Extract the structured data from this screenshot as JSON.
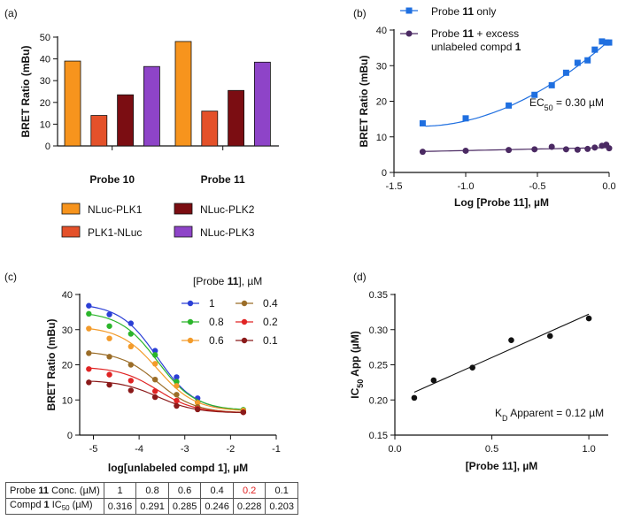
{
  "chart_data": [
    {
      "panel": "(a)",
      "type": "bar",
      "categories": [
        "Probe 10",
        "Probe 11"
      ],
      "series": [
        {
          "name": "NLuc-PLK1",
          "color": "#f7941d",
          "values": [
            39,
            48
          ]
        },
        {
          "name": "PLK1-NLuc",
          "color": "#e4512a",
          "values": [
            14,
            16
          ]
        },
        {
          "name": "NLuc-PLK2",
          "color": "#7b0d12",
          "values": [
            23.5,
            25.5
          ]
        },
        {
          "name": "NLuc-PLK3",
          "color": "#8e44c8",
          "values": [
            36.5,
            38.5
          ]
        }
      ],
      "ylabel": "BRET Ratio (mBu)",
      "ylim": [
        0,
        50
      ],
      "yticks": [
        "0",
        "10",
        "20",
        "30",
        "40",
        "50"
      ]
    },
    {
      "panel": "(b)",
      "type": "scatter",
      "xlabel": "Log [Probe 11], µM",
      "ylabel": "BRET Ratio (mBu)",
      "xlim": [
        -1.5,
        0
      ],
      "ylim": [
        0,
        40
      ],
      "xticks": [
        "-1.5",
        "-1.0",
        "-0.5",
        "0.0"
      ],
      "yticks": [
        "0",
        "10",
        "20",
        "30",
        "40"
      ],
      "annotation": {
        "prefix": "EC",
        "sub": "50",
        "suffix": " = 0.30 µM"
      },
      "series": [
        {
          "name_pre": "Probe ",
          "name_bold": "11",
          "name_post": " only",
          "color": "#1f6fe0",
          "marker": "square",
          "x": [
            -1.3,
            -1.0,
            -0.7,
            -0.52,
            -0.4,
            -0.3,
            -0.22,
            -0.15,
            -0.1,
            -0.05,
            -0.02,
            0.0
          ],
          "y": [
            13.8,
            15.2,
            18.8,
            21.8,
            24.5,
            28.0,
            30.8,
            31.5,
            34.5,
            36.8,
            36.5,
            36.5
          ]
        },
        {
          "name_line1_pre": "Probe ",
          "name_line1_bold": "11",
          "name_line1_post": " + excess",
          "name_line2_pre": "unlabeled compd ",
          "name_line2_bold": "1",
          "color": "#4b2a63",
          "marker": "circle",
          "x": [
            -1.3,
            -1.0,
            -0.7,
            -0.52,
            -0.4,
            -0.3,
            -0.22,
            -0.15,
            -0.1,
            -0.05,
            -0.02,
            0.0
          ],
          "y": [
            5.8,
            6.1,
            6.3,
            6.5,
            7.2,
            6.5,
            6.4,
            6.6,
            7.0,
            7.5,
            7.8,
            6.8
          ]
        }
      ]
    },
    {
      "panel": "(c)",
      "type": "line",
      "xlabel": "log[unlabeled compd 1], µM",
      "ylabel": "BRET Ratio (mBu)",
      "xlim": [
        -5.3,
        -1
      ],
      "ylim": [
        0,
        40
      ],
      "xticks": [
        "-5",
        "-4",
        "-3",
        "-2",
        "-1"
      ],
      "yticks": [
        "0",
        "10",
        "20",
        "30",
        "40"
      ],
      "legend_title_pre": "[Probe ",
      "legend_title_bold": "11",
      "legend_title_post": "], µM",
      "x": [
        -5.1,
        -4.65,
        -4.18,
        -3.65,
        -3.18,
        -2.72,
        -1.72
      ],
      "series": [
        {
          "name": "1",
          "color": "#2b3fd6",
          "y": [
            36.8,
            34.3,
            31.8,
            24.0,
            16.5,
            10.5,
            7.0
          ]
        },
        {
          "name": "0.8",
          "color": "#2bb52b",
          "y": [
            34.5,
            31.0,
            28.8,
            22.8,
            15.2,
            9.3,
            7.2
          ]
        },
        {
          "name": "0.6",
          "color": "#f39b2a",
          "y": [
            30.3,
            27.5,
            25.2,
            20.3,
            14.0,
            9.2,
            7.0
          ]
        },
        {
          "name": "0.4",
          "color": "#9b6d28",
          "y": [
            23.3,
            22.3,
            20.0,
            15.8,
            11.5,
            8.0,
            6.5
          ]
        },
        {
          "name": "0.2",
          "color": "#e02424",
          "y": [
            18.8,
            17.2,
            15.5,
            12.5,
            9.8,
            7.5,
            6.5
          ]
        },
        {
          "name": "0.1",
          "color": "#8b1a1a",
          "y": [
            15.0,
            14.3,
            12.7,
            10.8,
            8.3,
            7.3,
            6.5
          ]
        }
      ]
    },
    {
      "panel": "(d)",
      "type": "scatter",
      "xlabel_pre": "[Probe ",
      "xlabel_bold": "11",
      "xlabel_post": "], µM",
      "ylabel_pre": "IC",
      "ylabel_sub": "50",
      "ylabel_post": " App (µM)",
      "xlim": [
        0,
        1.1
      ],
      "ylim": [
        0.15,
        0.35
      ],
      "xticks": [
        "0.0",
        "0.5",
        "1.0"
      ],
      "yticks": [
        "0.15",
        "0.20",
        "0.25",
        "0.30",
        "0.35"
      ],
      "x": [
        0.1,
        0.2,
        0.4,
        0.6,
        0.8,
        1.0
      ],
      "y": [
        0.203,
        0.228,
        0.246,
        0.285,
        0.291,
        0.316
      ],
      "fit": {
        "x": [
          0.1,
          1.0
        ],
        "y": [
          0.211,
          0.322
        ]
      },
      "annotation": {
        "prefix": "K",
        "sub": "D",
        "suffix": " Apparent = 0.12 µM"
      }
    }
  ],
  "table": {
    "row1_label_pre": "Probe ",
    "row1_label_bold": "11",
    "row1_label_post": " Conc. (µM)",
    "row2_label_pre": "Compd ",
    "row2_label_bold": "1",
    "row2_label_mid": " IC",
    "row2_label_sub": "50",
    "row2_label_post": " (µM)",
    "conc": [
      "1",
      "0.8",
      "0.6",
      "0.4",
      "0.2",
      "0.1"
    ],
    "ic50": [
      "0.316",
      "0.291",
      "0.285",
      "0.246",
      "0.228",
      "0.203"
    ],
    "highlight_color": "#e02020"
  }
}
